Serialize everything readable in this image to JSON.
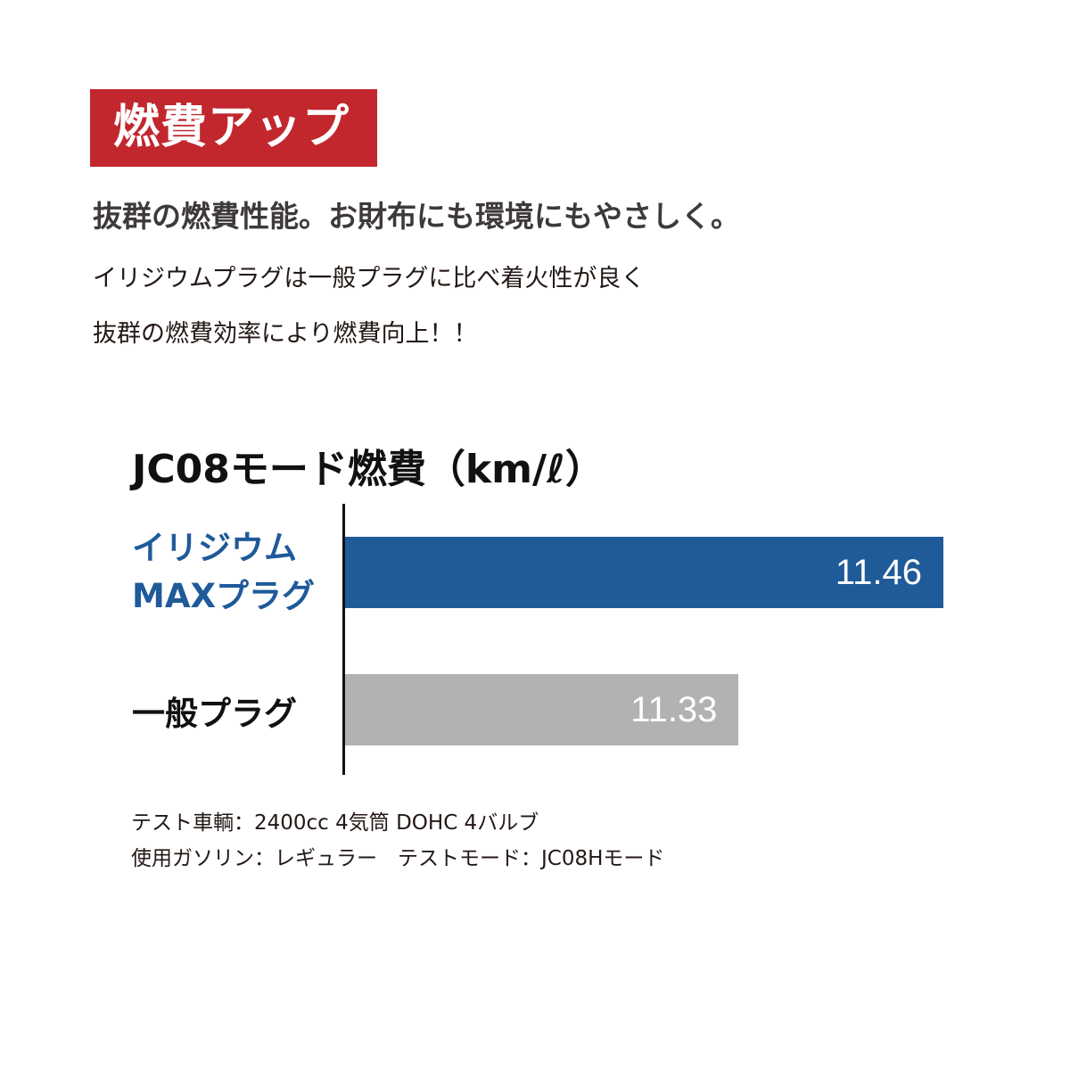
{
  "badge": "燃費アップ",
  "headline": "抜群の燃費性能。お財布にも環境にもやさしく。",
  "body_lines": [
    "イリジウムプラグは一般プラグに比べ着火性が良く",
    "抜群の燃費効率により燃費向上！！"
  ],
  "colors": {
    "badge": "#c1272d",
    "iridium": "#1f5a99",
    "standard": "#b1b2b3"
  },
  "chart_data": {
    "type": "bar",
    "orientation": "horizontal",
    "title": "JC08モード燃費（km/ℓ）",
    "categories": [
      {
        "lines": [
          "イリジウム",
          "MAXプラグ"
        ],
        "color": "#1f5a99"
      },
      {
        "lines": [
          "一般プラグ"
        ],
        "color": "#111111"
      }
    ],
    "values": [
      11.46,
      11.33
    ],
    "value_labels": [
      "11.46",
      "11.33"
    ],
    "xlim": [
      11.08,
      11.46
    ],
    "grid": false
  },
  "notes": [
    "テスト車輌：2400cc 4気筒 DOHC 4バルブ",
    "使用ガソリン：レギュラー　テストモード：JC08Hモード"
  ]
}
